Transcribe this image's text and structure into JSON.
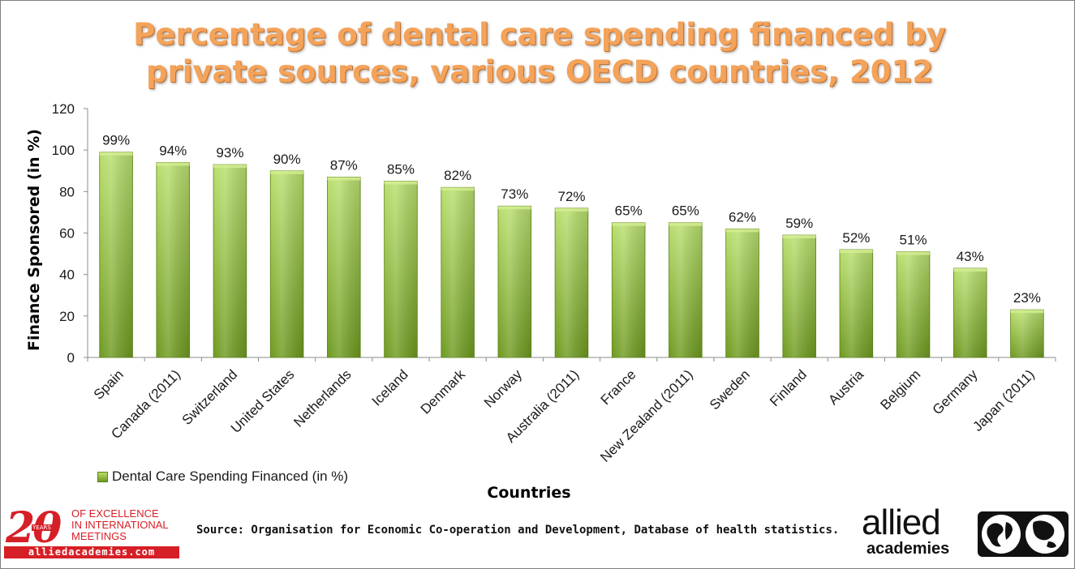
{
  "chart_data": {
    "type": "bar",
    "title": "Percentage of dental care spending financed by private sources, various OECD countries, 2012",
    "xlabel": "Countries",
    "ylabel": "Finance Sponsored  (in %)",
    "ylim": [
      0,
      120
    ],
    "yticks": [
      0,
      20,
      40,
      60,
      80,
      100,
      120
    ],
    "grid": false,
    "legend_position": "bottom-left",
    "categories": [
      "Spain",
      "Canada (2011)",
      "Switzerland",
      "United States",
      "Netherlands",
      "Iceland",
      "Denmark",
      "Norway",
      "Australia (2011)",
      "France",
      "New Zealand (2011)",
      "Sweden",
      "Finland",
      "Austria",
      "Belgium",
      "Germany",
      "Japan (2011)"
    ],
    "series": [
      {
        "name": "Dental Care Spending Financed (in %)",
        "values": [
          99,
          94,
          93,
          90,
          87,
          85,
          82,
          73,
          72,
          65,
          65,
          62,
          59,
          52,
          51,
          43,
          23
        ],
        "data_labels": [
          "99%",
          "94%",
          "93%",
          "90%",
          "87%",
          "85%",
          "82%",
          "73%",
          "72%",
          "65%",
          "65%",
          "62%",
          "59%",
          "52%",
          "51%",
          "43%",
          "23%"
        ],
        "color": "#8dbb3a"
      }
    ]
  },
  "source": "Source: Organisation for Economic Co-operation and Development, Database of health statistics.",
  "logos": {
    "left": {
      "number": "20",
      "years": "YEARS",
      "tagline": [
        "OF EXCELLENCE",
        "IN INTERNATIONAL",
        "MEETINGS"
      ],
      "url": "alliedacademies.com"
    },
    "right": {
      "word1": "allied",
      "word2": "academies"
    }
  },
  "colors": {
    "title": "#f4a35a",
    "bar_top": "#b9df6e",
    "bar_bottom": "#6e9a1f",
    "brand_red": "#d61f26"
  }
}
